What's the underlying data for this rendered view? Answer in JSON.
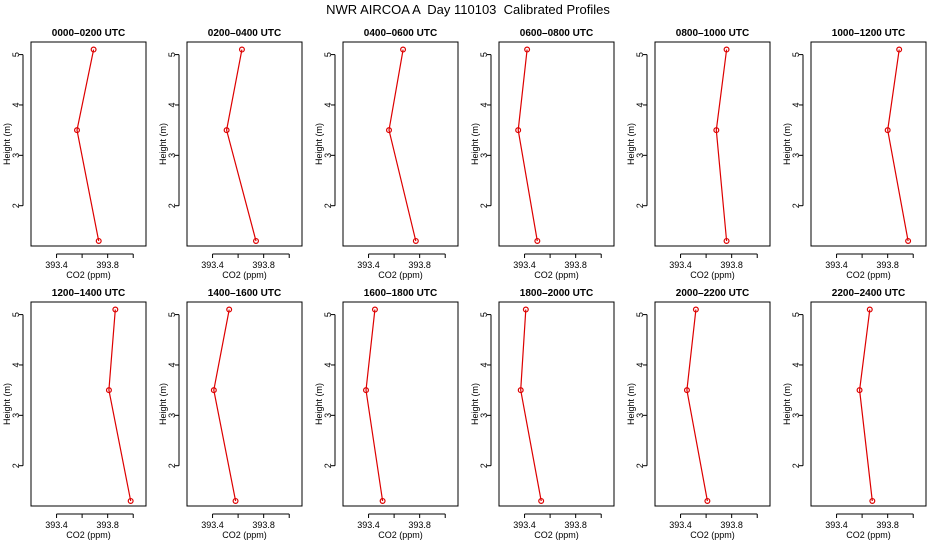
{
  "title": "NWR AIRCOA A  Day 110103  Calibrated Profiles",
  "chart_data": {
    "type": "line",
    "title": "NWR AIRCOA A  Day 110103  Calibrated Profiles",
    "xlabel": "CO2 (ppm)",
    "ylabel": "Height (m)",
    "xlim": [
      393.2,
      394.1
    ],
    "ylim": [
      1.2,
      5.25
    ],
    "xticks": [
      393.4,
      393.6,
      393.8,
      394.0
    ],
    "xtick_labels": [
      "393.4",
      "393.8"
    ],
    "yticks": [
      2,
      3,
      4,
      5
    ],
    "ytick_labels": [
      "2",
      "3",
      "4",
      "5"
    ],
    "color": "#dd0000",
    "panels": [
      {
        "title": "0000–0200 UTC",
        "points": [
          {
            "height": 5.1,
            "co2": 393.69
          },
          {
            "height": 3.5,
            "co2": 393.56
          },
          {
            "height": 1.3,
            "co2": 393.73
          }
        ]
      },
      {
        "title": "0200–0400 UTC",
        "points": [
          {
            "height": 5.1,
            "co2": 393.63
          },
          {
            "height": 3.5,
            "co2": 393.51
          },
          {
            "height": 1.3,
            "co2": 393.74
          }
        ]
      },
      {
        "title": "0400–0600 UTC",
        "points": [
          {
            "height": 5.1,
            "co2": 393.67
          },
          {
            "height": 3.5,
            "co2": 393.56
          },
          {
            "height": 1.3,
            "co2": 393.77
          }
        ]
      },
      {
        "title": "0600–0800 UTC",
        "points": [
          {
            "height": 5.1,
            "co2": 393.42
          },
          {
            "height": 3.5,
            "co2": 393.35
          },
          {
            "height": 1.3,
            "co2": 393.5
          }
        ]
      },
      {
        "title": "0800–1000 UTC",
        "points": [
          {
            "height": 5.1,
            "co2": 393.76
          },
          {
            "height": 3.5,
            "co2": 393.68
          },
          {
            "height": 1.3,
            "co2": 393.76
          }
        ]
      },
      {
        "title": "1000–1200 UTC",
        "points": [
          {
            "height": 5.1,
            "co2": 393.89
          },
          {
            "height": 3.5,
            "co2": 393.8
          },
          {
            "height": 1.3,
            "co2": 393.96
          }
        ]
      },
      {
        "title": "1200–1400 UTC",
        "points": [
          {
            "height": 5.1,
            "co2": 393.86
          },
          {
            "height": 3.5,
            "co2": 393.81
          },
          {
            "height": 1.3,
            "co2": 393.98
          }
        ]
      },
      {
        "title": "1400–1600 UTC",
        "points": [
          {
            "height": 5.1,
            "co2": 393.53
          },
          {
            "height": 3.5,
            "co2": 393.41
          },
          {
            "height": 1.3,
            "co2": 393.58
          }
        ]
      },
      {
        "title": "1600–1800 UTC",
        "points": [
          {
            "height": 5.1,
            "co2": 393.45
          },
          {
            "height": 3.5,
            "co2": 393.38
          },
          {
            "height": 1.3,
            "co2": 393.51
          }
        ]
      },
      {
        "title": "1800–2000 UTC",
        "points": [
          {
            "height": 5.1,
            "co2": 393.41
          },
          {
            "height": 3.5,
            "co2": 393.37
          },
          {
            "height": 1.3,
            "co2": 393.53
          }
        ]
      },
      {
        "title": "2000–2200 UTC",
        "points": [
          {
            "height": 5.1,
            "co2": 393.52
          },
          {
            "height": 3.5,
            "co2": 393.45
          },
          {
            "height": 1.3,
            "co2": 393.61
          }
        ]
      },
      {
        "title": "2200–2400 UTC",
        "points": [
          {
            "height": 5.1,
            "co2": 393.66
          },
          {
            "height": 3.5,
            "co2": 393.58
          },
          {
            "height": 1.3,
            "co2": 393.68
          }
        ]
      }
    ]
  }
}
